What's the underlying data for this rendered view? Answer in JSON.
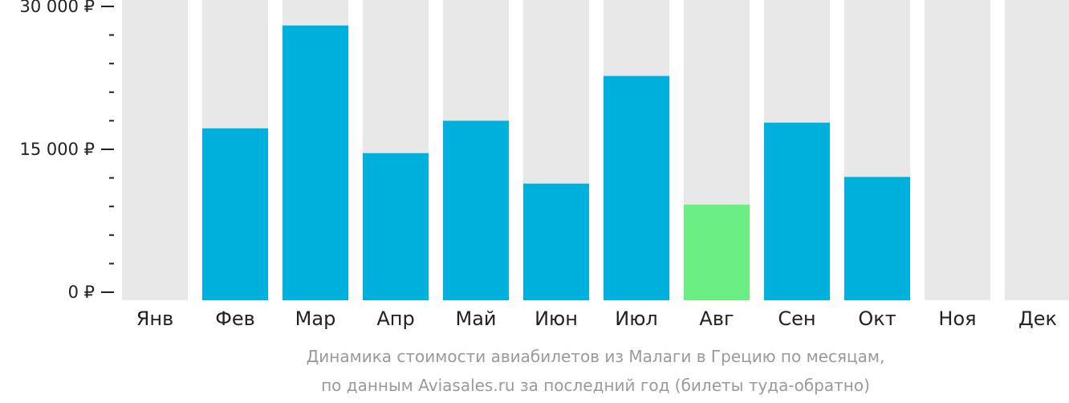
{
  "chart_data": {
    "type": "bar",
    "categories": [
      "Янв",
      "Фев",
      "Мар",
      "Апр",
      "Май",
      "Июн",
      "Июл",
      "Авг",
      "Сен",
      "Окт",
      "Ноя",
      "Дек"
    ],
    "values": [
      null,
      17200,
      28000,
      14600,
      18000,
      11400,
      22700,
      9200,
      17800,
      12100,
      null,
      null
    ],
    "highlight_index": 7,
    "ylim": [
      0,
      30000
    ],
    "yticks": [
      0,
      15000,
      30000
    ],
    "ytick_labels": [
      "0 ₽",
      "15 000 ₽",
      "30 000 ₽"
    ],
    "minor_ticks_between": 4,
    "title": "",
    "xlabel": "",
    "ylabel": ""
  },
  "caption": {
    "line1": "Динамика стоимости авиабилетов из Малаги в Грецию по месяцам,",
    "line2": "по данным Aviasales.ru за последний год (билеты туда-обратно)"
  },
  "colors": {
    "bar": "#00b0dc",
    "highlight": "#6bef84",
    "background_bar": "#e8e8e8",
    "axis": "#222222",
    "caption": "#9a9a9a"
  }
}
